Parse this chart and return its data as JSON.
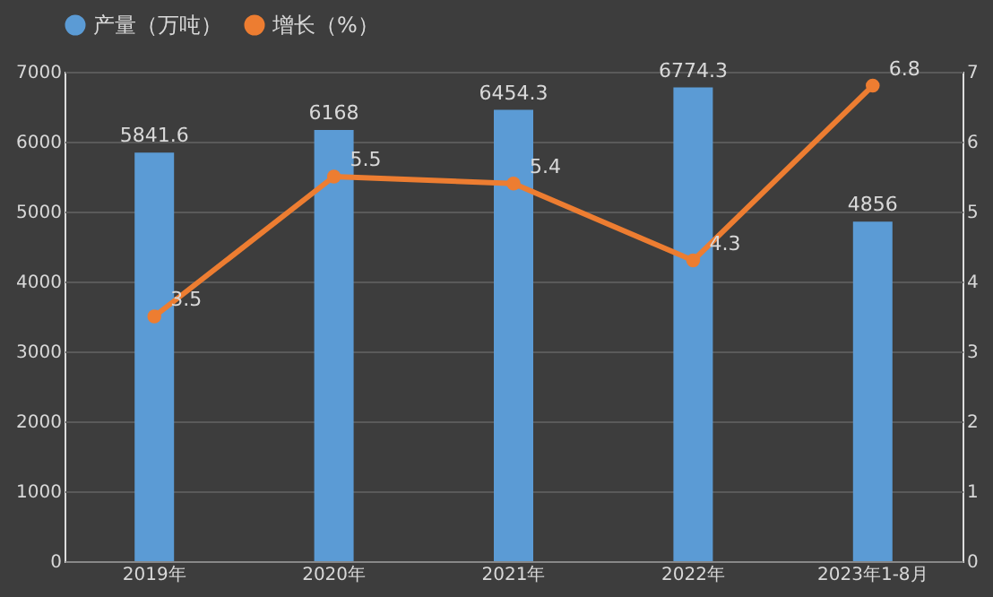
{
  "chart_data": {
    "type": "bar",
    "categories": [
      "2019年",
      "2020年",
      "2021年",
      "2022年",
      "2023年1-8月"
    ],
    "series": [
      {
        "name": "产量（万吨）",
        "color": "#5b9bd5",
        "values": [
          5841.6,
          6168,
          6454.3,
          6774.3,
          4856
        ]
      },
      {
        "name": "增长（%）",
        "type": "line",
        "axis": "y2",
        "color": "#ed7d31",
        "values": [
          3.5,
          5.5,
          5.4,
          4.3,
          6.8
        ],
        "marker": "circle"
      }
    ],
    "ylim": [
      0,
      7000
    ],
    "yticks": [
      0,
      1000,
      2000,
      3000,
      4000,
      5000,
      6000,
      7000
    ],
    "y2lim": [
      0,
      7
    ],
    "y2ticks": [
      0,
      1,
      2,
      3,
      4,
      5,
      6,
      7
    ],
    "data_labels": true,
    "grid": "y",
    "legend": "top"
  }
}
